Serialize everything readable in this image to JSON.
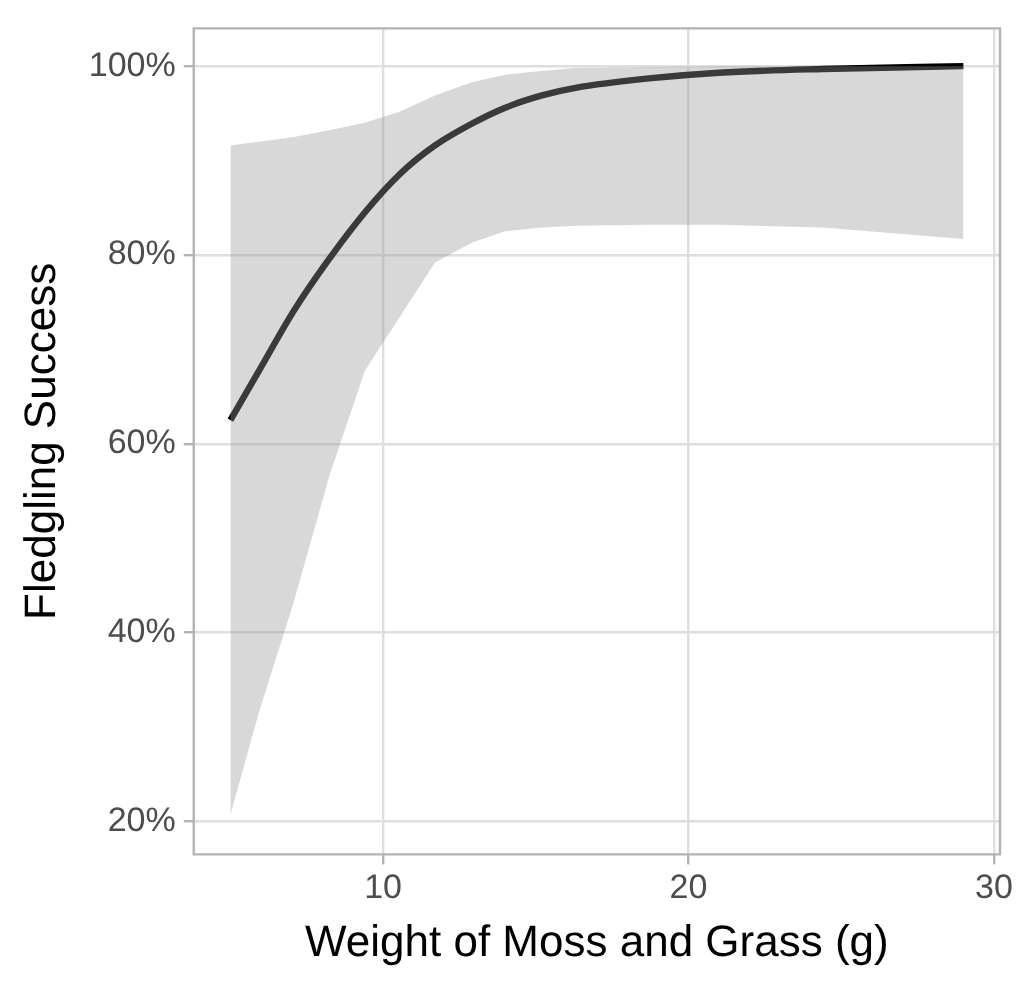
{
  "chart_data": {
    "type": "line",
    "xlabel": "Weight of Moss and Grass (g)",
    "ylabel": "Fledgling Success",
    "x": [
      5,
      5.93,
      7.08,
      8.24,
      9.4,
      10.56,
      11.7,
      12.9,
      14.0,
      15.2,
      16.3,
      18.7,
      21.0,
      24.4,
      29
    ],
    "series": [
      {
        "color": "#000000",
        "values": [
          62.5,
          67.7,
          74.1,
          79.6,
          84.5,
          88.6,
          91.6,
          93.9,
          95.6,
          96.9,
          97.7,
          98.7,
          99.3,
          99.7,
          100
        ],
        "lower": [
          20.7,
          31.5,
          43.3,
          56.6,
          67.7,
          73.5,
          79.2,
          81.3,
          82.5,
          82.9,
          83.1,
          83.2,
          83.2,
          82.9,
          81.7
        ],
        "upper": [
          91.6,
          92.0,
          92.5,
          93.2,
          94.0,
          95.2,
          96.9,
          98.3,
          99.1,
          99.5,
          99.8,
          99.9,
          100,
          100,
          100
        ]
      }
    ],
    "xlim": [
      3.8,
      30.2
    ],
    "ylim": [
      16.5,
      104
    ],
    "xticks": [
      10,
      20,
      30
    ],
    "yticks": [
      {
        "value": 20,
        "label": "20%"
      },
      {
        "value": 40,
        "label": "40%"
      },
      {
        "value": 60,
        "label": "60%"
      },
      {
        "value": 80,
        "label": "80%"
      },
      {
        "value": 100,
        "label": "100%"
      }
    ],
    "grid": true,
    "marker": "none"
  }
}
